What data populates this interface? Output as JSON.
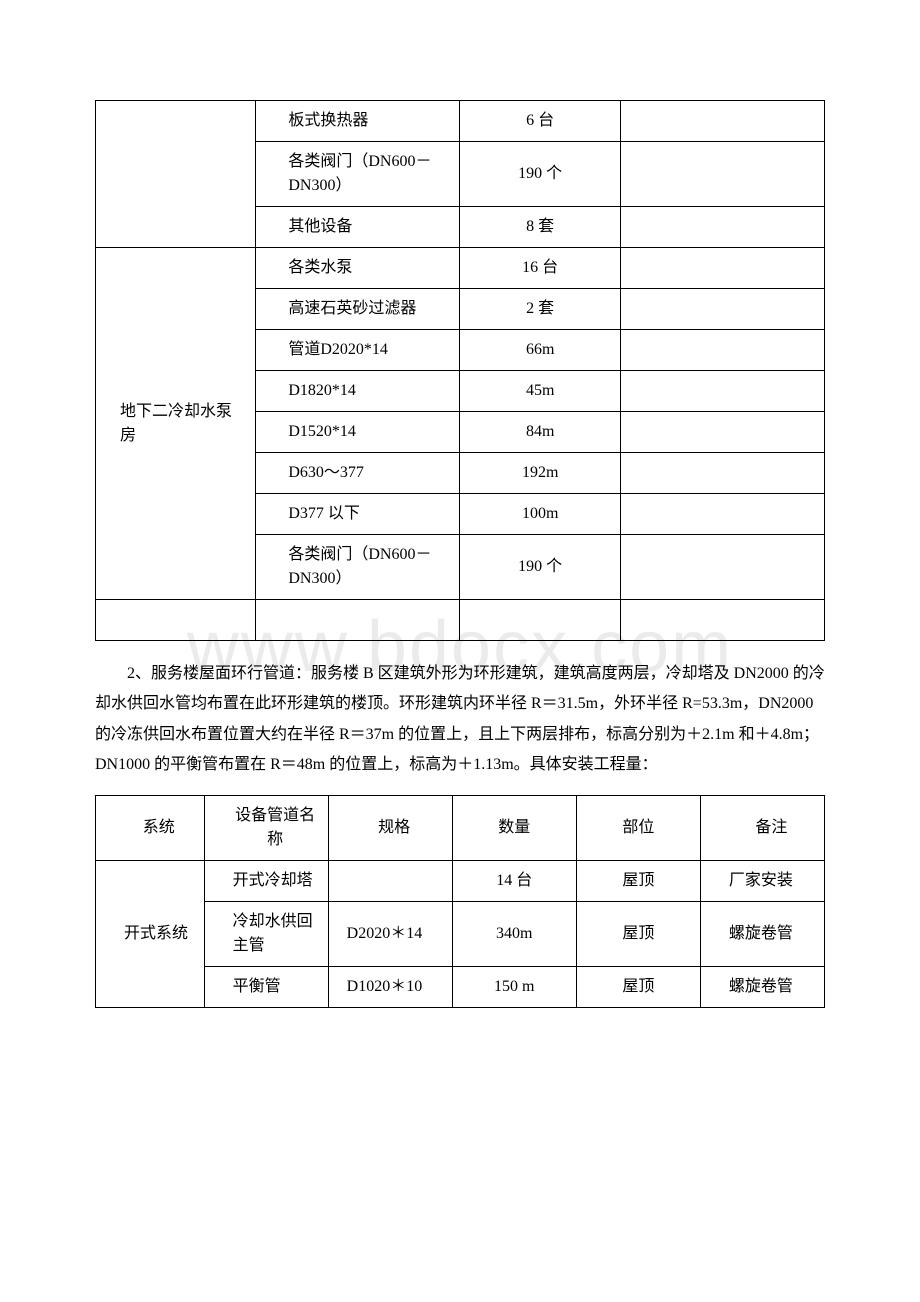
{
  "watermark": "www.bdocx.com",
  "table1": {
    "rows": [
      {
        "group": null,
        "item": "板式换热器",
        "qty": "6 台",
        "note": ""
      },
      {
        "group": null,
        "item": "各类阀门（DN600－DN300）",
        "qty": "190 个",
        "note": ""
      },
      {
        "group": null,
        "item": "其他设备",
        "qty": "8 套",
        "note": ""
      },
      {
        "group": "地下二冷却水泵房",
        "item": "各类水泵",
        "qty": "16 台",
        "note": ""
      },
      {
        "group": null,
        "item": "高速石英砂过滤器",
        "qty": "2 套",
        "note": ""
      },
      {
        "group": null,
        "item": "管道D2020*14",
        "qty": "66m",
        "note": ""
      },
      {
        "group": null,
        "item": "D1820*14",
        "qty": "45m",
        "note": ""
      },
      {
        "group": null,
        "item": "D1520*14",
        "qty": "84m",
        "note": ""
      },
      {
        "group": null,
        "item": "D630～377",
        "qty": "192m",
        "note": ""
      },
      {
        "group": null,
        "item": "D377 以下",
        "qty": "100m",
        "note": ""
      },
      {
        "group": null,
        "item": "各类阀门（DN600－DN300）",
        "qty": "190 个",
        "note": ""
      }
    ],
    "trailing_empty_row": true
  },
  "paragraph": "2、服务楼屋面环行管道：服务楼 B 区建筑外形为环形建筑，建筑高度两层，冷却塔及 DN2000 的冷却水供回水管均布置在此环形建筑的楼顶。环形建筑内环半径 R＝31.5m，外环半径 R=53.3m，DN2000 的冷冻供回水布置位置大约在半径 R＝37m 的位置上，且上下两层排布，标高分别为＋2.1m 和＋4.8m；DN1000 的平衡管布置在 R＝48m 的位置上，标高为＋1.13m。具体安装工程量：",
  "table2": {
    "headers": [
      "系统",
      "设备管道名称",
      "规格",
      "数量",
      "部位",
      "备注"
    ],
    "rows": [
      {
        "system": "开式系统",
        "name": "开式冷却塔",
        "spec": "",
        "qty": "14 台",
        "pos": "屋顶",
        "note": "厂家安装"
      },
      {
        "system": null,
        "name": "冷却水供回主管",
        "spec": "D2020＊14",
        "qty": "340m",
        "pos": "屋顶",
        "note": "螺旋卷管"
      },
      {
        "system": null,
        "name": "平衡管",
        "spec": "D1020＊10",
        "qty": "150 m",
        "pos": "屋顶",
        "note": "螺旋卷管"
      }
    ]
  }
}
